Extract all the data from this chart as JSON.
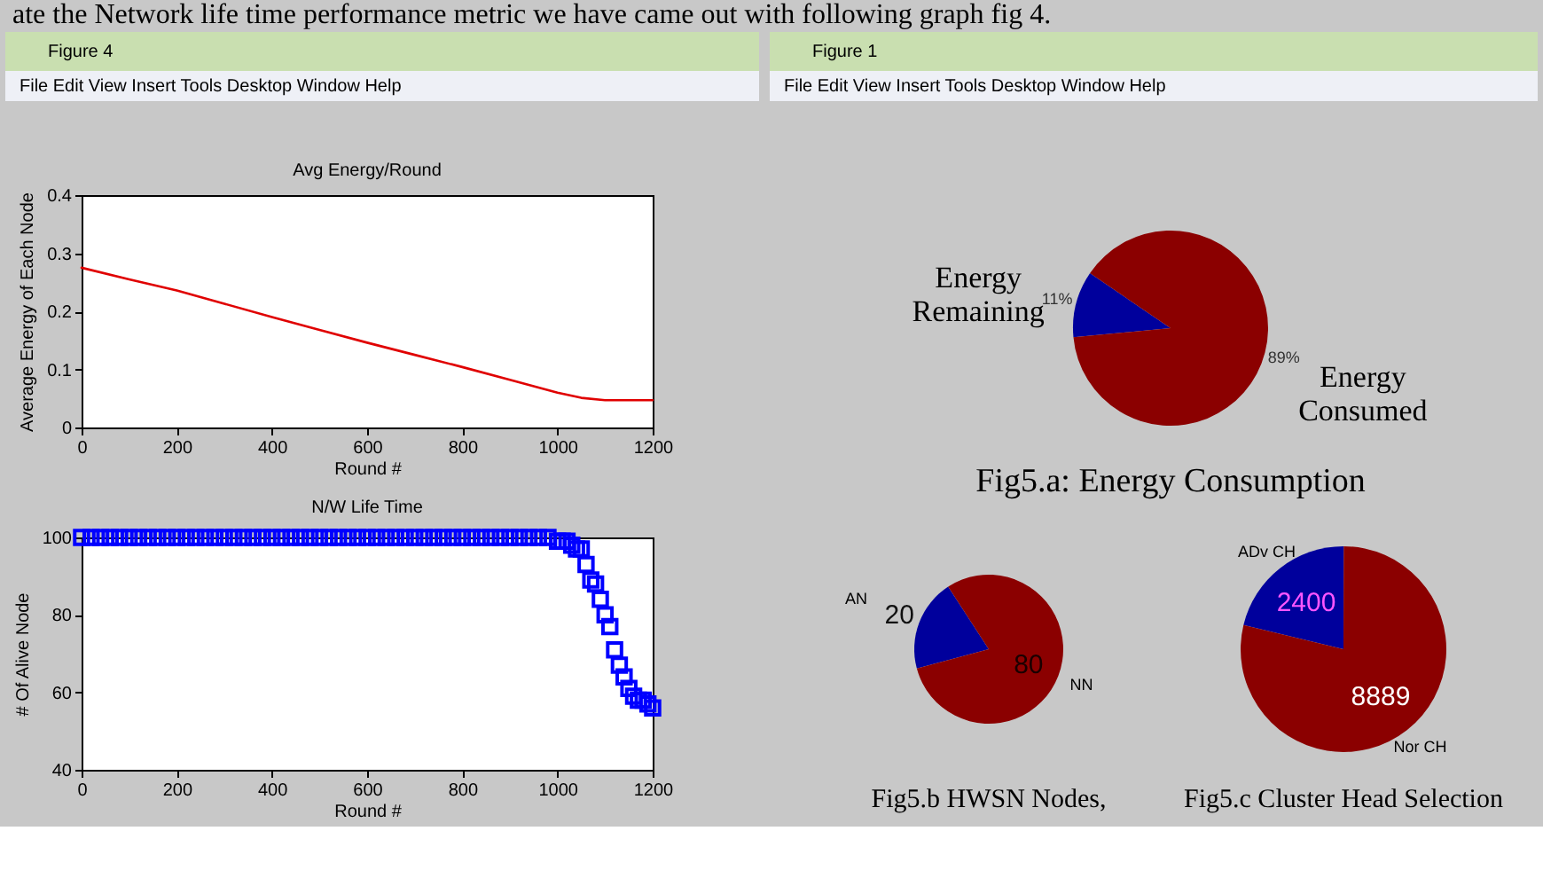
{
  "chart_data": [
    {
      "type": "line",
      "title": "Avg Energy/Round",
      "xlabel": "Round #",
      "ylabel": "Average Energy of Each Node",
      "x": [
        0,
        100,
        200,
        300,
        400,
        500,
        600,
        700,
        800,
        900,
        1000,
        1050,
        1100,
        1150,
        1200
      ],
      "series": [
        {
          "color": "#e00000",
          "values": [
            0.275,
            0.255,
            0.236,
            0.213,
            0.19,
            0.168,
            0.146,
            0.125,
            0.104,
            0.082,
            0.06,
            0.051,
            0.047,
            0.047,
            0.047
          ]
        }
      ],
      "xlim": [
        0,
        1200
      ],
      "ylim": [
        0,
        0.4
      ],
      "xticks": [
        0,
        200,
        400,
        600,
        800,
        1000,
        1200
      ],
      "yticks": [
        0,
        0.1,
        0.2,
        0.3,
        0.4
      ],
      "line_style": "solid",
      "annotations": [
        "ate the Network life time performance metric we have came out with following graph fig 4.",
        "Figure 4",
        "File Edit View Insert Tools Desktop Window Help"
      ]
    },
    {
      "type": "scatter",
      "title": "N/W Life Time",
      "xlabel": "Round #",
      "ylabel": "# Of Alive Node",
      "marker": "square",
      "x": [
        0,
        20,
        40,
        60,
        80,
        100,
        120,
        140,
        160,
        180,
        200,
        220,
        240,
        260,
        280,
        300,
        320,
        340,
        360,
        380,
        400,
        420,
        440,
        460,
        480,
        500,
        520,
        540,
        560,
        580,
        600,
        620,
        640,
        660,
        680,
        700,
        720,
        740,
        760,
        780,
        800,
        820,
        840,
        860,
        880,
        900,
        920,
        940,
        960,
        980,
        1000,
        1010,
        1020,
        1030,
        1040,
        1050,
        1060,
        1070,
        1080,
        1090,
        1100,
        1110,
        1120,
        1130,
        1140,
        1150,
        1160,
        1170,
        1180,
        1190,
        1200
      ],
      "series": [
        {
          "color": "#0000ff",
          "values": [
            100,
            100,
            100,
            100,
            100,
            100,
            100,
            100,
            100,
            100,
            100,
            100,
            100,
            100,
            100,
            100,
            100,
            100,
            100,
            100,
            100,
            100,
            100,
            100,
            100,
            100,
            100,
            100,
            100,
            100,
            100,
            100,
            100,
            100,
            100,
            100,
            100,
            100,
            100,
            100,
            100,
            100,
            100,
            100,
            100,
            100,
            100,
            100,
            100,
            100,
            99,
            99,
            99,
            98,
            97,
            97,
            93,
            89,
            88,
            84,
            80,
            77,
            71,
            67,
            64,
            61,
            59,
            58,
            58,
            57,
            56
          ]
        }
      ],
      "xlim": [
        0,
        1200
      ],
      "ylim": [
        40,
        100
      ],
      "xticks": [
        0,
        200,
        400,
        600,
        800,
        1000,
        1200
      ],
      "yticks": [
        40,
        60,
        80,
        100
      ]
    },
    {
      "type": "pie",
      "title": "Fig5.a: Energy Consumption",
      "categories": [
        "Energy Remaining",
        "Energy Consumed"
      ],
      "values": [
        11,
        89
      ],
      "colors": [
        "#00009c",
        "#8b0000"
      ],
      "value_labels": [
        "11%",
        "89%"
      ],
      "annotations": [
        "Figure 1",
        "File Edit View Insert Tools Desktop Window Help"
      ]
    },
    {
      "type": "pie",
      "title": "Fig5.b HWSN Nodes,",
      "categories": [
        "AN",
        "NN"
      ],
      "values": [
        20,
        80
      ],
      "colors": [
        "#00009c",
        "#8b0000"
      ],
      "data_labels": true
    },
    {
      "type": "pie",
      "title": "Fig5.c Cluster Head Selection",
      "categories": [
        "ADv CH",
        "Nor CH"
      ],
      "values": [
        2400,
        8889
      ],
      "colors": [
        "#00009c",
        "#8b0000"
      ],
      "data_labels": true
    }
  ]
}
